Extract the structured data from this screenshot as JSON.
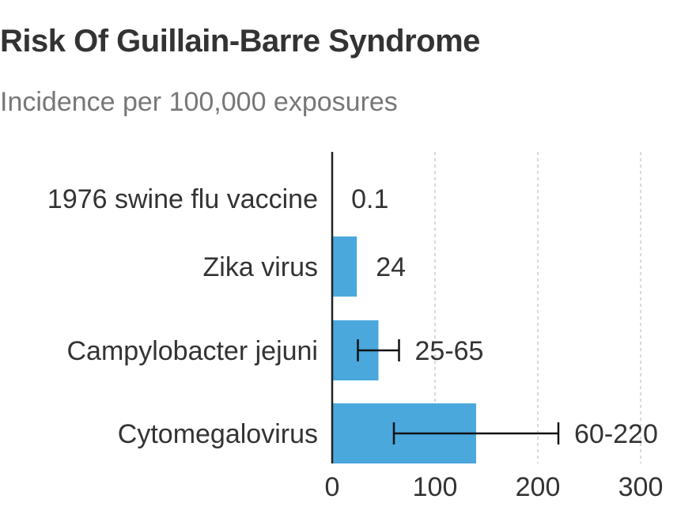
{
  "title": "Risk Of Guillain-Barre Syndrome",
  "subtitle": "Incidence per 100,000 exposures",
  "colors": {
    "bar": "#4aa8dd",
    "text": "#333333",
    "axis": "#222222",
    "grid": "#cccccc"
  },
  "chart_data": {
    "type": "bar",
    "orientation": "horizontal",
    "categories": [
      "1976 swine flu vaccine",
      "Zika virus",
      "Campylobacter jejuni",
      "Cytomegalovirus"
    ],
    "values": [
      0.1,
      24,
      45,
      140
    ],
    "ranges": [
      null,
      null,
      [
        25,
        65
      ],
      [
        60,
        220
      ]
    ],
    "value_labels": [
      "0.1",
      "24",
      "25-65",
      "60-220"
    ],
    "xlim": [
      0,
      300
    ],
    "xticks": [
      0,
      100,
      200,
      300
    ],
    "grid": true,
    "xlabel": "",
    "ylabel": ""
  }
}
